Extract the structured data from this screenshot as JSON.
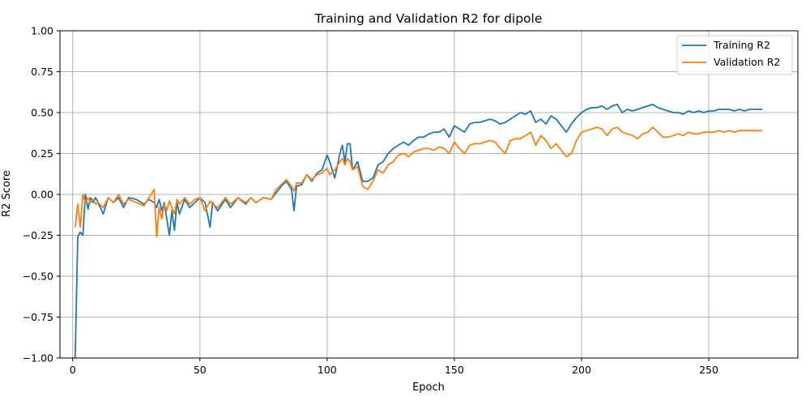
{
  "chart_data": {
    "type": "line",
    "title": "Training and Validation R2 for dipole",
    "xlabel": "Epoch",
    "ylabel": "R2 Score",
    "xlim": [
      -5,
      285
    ],
    "ylim": [
      -1.0,
      1.0
    ],
    "xticks": [
      0,
      50,
      100,
      150,
      200,
      250
    ],
    "yticks": [
      -1.0,
      -0.75,
      -0.5,
      -0.25,
      0.0,
      0.25,
      0.5,
      0.75,
      1.0
    ],
    "xtick_labels": [
      "0",
      "50",
      "100",
      "150",
      "200",
      "250"
    ],
    "ytick_labels": [
      "−1.00",
      "−0.75",
      "−0.50",
      "−0.25",
      "0.00",
      "0.25",
      "0.50",
      "0.75",
      "1.00"
    ],
    "grid": true,
    "legend_position": "top-right",
    "series": [
      {
        "name": "Training R2",
        "color": "#1f77b4",
        "points": [
          [
            1,
            -1.0
          ],
          [
            2,
            -0.26
          ],
          [
            3,
            -0.23
          ],
          [
            4,
            -0.25
          ],
          [
            5,
            0.0
          ],
          [
            6,
            -0.09
          ],
          [
            7,
            -0.02
          ],
          [
            8,
            -0.05
          ],
          [
            9,
            -0.02
          ],
          [
            10,
            -0.05
          ],
          [
            12,
            -0.12
          ],
          [
            14,
            -0.02
          ],
          [
            16,
            -0.05
          ],
          [
            18,
            -0.02
          ],
          [
            20,
            -0.08
          ],
          [
            22,
            -0.02
          ],
          [
            25,
            -0.03
          ],
          [
            28,
            -0.06
          ],
          [
            30,
            -0.03
          ],
          [
            32,
            -0.05
          ],
          [
            33,
            -0.08
          ],
          [
            34,
            -0.03
          ],
          [
            35,
            -0.1
          ],
          [
            36,
            -0.05
          ],
          [
            37,
            -0.15
          ],
          [
            38,
            -0.25
          ],
          [
            39,
            -0.1
          ],
          [
            40,
            -0.22
          ],
          [
            41,
            -0.05
          ],
          [
            42,
            -0.12
          ],
          [
            44,
            -0.03
          ],
          [
            46,
            -0.08
          ],
          [
            48,
            -0.05
          ],
          [
            50,
            -0.02
          ],
          [
            52,
            -0.05
          ],
          [
            54,
            -0.2
          ],
          [
            55,
            -0.05
          ],
          [
            57,
            -0.1
          ],
          [
            60,
            -0.03
          ],
          [
            62,
            -0.08
          ],
          [
            65,
            -0.02
          ],
          [
            68,
            -0.06
          ],
          [
            70,
            -0.02
          ],
          [
            72,
            -0.05
          ],
          [
            75,
            -0.02
          ],
          [
            78,
            -0.03
          ],
          [
            80,
            0.01
          ],
          [
            82,
            0.05
          ],
          [
            84,
            0.08
          ],
          [
            86,
            0.03
          ],
          [
            87,
            -0.1
          ],
          [
            88,
            0.05
          ],
          [
            90,
            0.06
          ],
          [
            92,
            0.12
          ],
          [
            94,
            0.08
          ],
          [
            96,
            0.13
          ],
          [
            98,
            0.15
          ],
          [
            100,
            0.24
          ],
          [
            101,
            0.2
          ],
          [
            103,
            0.1
          ],
          [
            105,
            0.25
          ],
          [
            106,
            0.3
          ],
          [
            107,
            0.2
          ],
          [
            108,
            0.31
          ],
          [
            109,
            0.31
          ],
          [
            110,
            0.15
          ],
          [
            112,
            0.2
          ],
          [
            114,
            0.08
          ],
          [
            116,
            0.08
          ],
          [
            118,
            0.1
          ],
          [
            120,
            0.18
          ],
          [
            122,
            0.2
          ],
          [
            124,
            0.25
          ],
          [
            126,
            0.28
          ],
          [
            128,
            0.3
          ],
          [
            130,
            0.32
          ],
          [
            132,
            0.3
          ],
          [
            134,
            0.33
          ],
          [
            136,
            0.35
          ],
          [
            138,
            0.35
          ],
          [
            140,
            0.37
          ],
          [
            142,
            0.38
          ],
          [
            144,
            0.38
          ],
          [
            146,
            0.4
          ],
          [
            148,
            0.35
          ],
          [
            150,
            0.42
          ],
          [
            152,
            0.4
          ],
          [
            154,
            0.38
          ],
          [
            156,
            0.43
          ],
          [
            158,
            0.44
          ],
          [
            160,
            0.44
          ],
          [
            162,
            0.45
          ],
          [
            164,
            0.46
          ],
          [
            166,
            0.45
          ],
          [
            168,
            0.43
          ],
          [
            170,
            0.44
          ],
          [
            172,
            0.46
          ],
          [
            174,
            0.48
          ],
          [
            176,
            0.5
          ],
          [
            178,
            0.49
          ],
          [
            180,
            0.51
          ],
          [
            182,
            0.44
          ],
          [
            184,
            0.46
          ],
          [
            186,
            0.43
          ],
          [
            188,
            0.48
          ],
          [
            190,
            0.46
          ],
          [
            192,
            0.42
          ],
          [
            194,
            0.38
          ],
          [
            196,
            0.43
          ],
          [
            198,
            0.47
          ],
          [
            200,
            0.5
          ],
          [
            202,
            0.52
          ],
          [
            204,
            0.53
          ],
          [
            206,
            0.53
          ],
          [
            208,
            0.54
          ],
          [
            210,
            0.52
          ],
          [
            212,
            0.54
          ],
          [
            214,
            0.55
          ],
          [
            216,
            0.5
          ],
          [
            218,
            0.52
          ],
          [
            220,
            0.51
          ],
          [
            222,
            0.52
          ],
          [
            224,
            0.53
          ],
          [
            226,
            0.54
          ],
          [
            228,
            0.55
          ],
          [
            230,
            0.53
          ],
          [
            232,
            0.52
          ],
          [
            234,
            0.51
          ],
          [
            236,
            0.5
          ],
          [
            238,
            0.5
          ],
          [
            240,
            0.49
          ],
          [
            242,
            0.51
          ],
          [
            244,
            0.5
          ],
          [
            246,
            0.51
          ],
          [
            248,
            0.5
          ],
          [
            250,
            0.51
          ],
          [
            252,
            0.51
          ],
          [
            254,
            0.52
          ],
          [
            256,
            0.52
          ],
          [
            258,
            0.52
          ],
          [
            260,
            0.51
          ],
          [
            262,
            0.52
          ],
          [
            264,
            0.51
          ],
          [
            266,
            0.52
          ],
          [
            268,
            0.52
          ],
          [
            270,
            0.52
          ],
          [
            271,
            0.52
          ]
        ]
      },
      {
        "name": "Validation R2",
        "color": "#ff7f0e",
        "points": [
          [
            1,
            -0.2
          ],
          [
            2,
            -0.06
          ],
          [
            3,
            -0.2
          ],
          [
            4,
            0.0
          ],
          [
            5,
            -0.05
          ],
          [
            6,
            -0.02
          ],
          [
            7,
            -0.05
          ],
          [
            8,
            -0.03
          ],
          [
            9,
            -0.06
          ],
          [
            10,
            -0.05
          ],
          [
            12,
            -0.08
          ],
          [
            14,
            -0.02
          ],
          [
            16,
            -0.05
          ],
          [
            18,
            0.0
          ],
          [
            20,
            -0.06
          ],
          [
            22,
            -0.03
          ],
          [
            25,
            -0.05
          ],
          [
            28,
            -0.07
          ],
          [
            30,
            -0.02
          ],
          [
            32,
            0.03
          ],
          [
            33,
            -0.26
          ],
          [
            34,
            -0.08
          ],
          [
            35,
            -0.15
          ],
          [
            36,
            -0.06
          ],
          [
            37,
            -0.1
          ],
          [
            38,
            -0.04
          ],
          [
            39,
            -0.08
          ],
          [
            40,
            -0.12
          ],
          [
            41,
            -0.03
          ],
          [
            42,
            -0.06
          ],
          [
            44,
            -0.02
          ],
          [
            46,
            -0.06
          ],
          [
            48,
            -0.03
          ],
          [
            50,
            -0.02
          ],
          [
            52,
            -0.1
          ],
          [
            54,
            -0.04
          ],
          [
            55,
            -0.06
          ],
          [
            57,
            -0.08
          ],
          [
            60,
            -0.02
          ],
          [
            62,
            -0.06
          ],
          [
            65,
            -0.02
          ],
          [
            68,
            -0.05
          ],
          [
            70,
            -0.02
          ],
          [
            72,
            -0.05
          ],
          [
            75,
            -0.02
          ],
          [
            78,
            -0.03
          ],
          [
            80,
            0.03
          ],
          [
            82,
            0.06
          ],
          [
            84,
            0.09
          ],
          [
            86,
            0.05
          ],
          [
            87,
            0.02
          ],
          [
            88,
            0.07
          ],
          [
            90,
            0.07
          ],
          [
            92,
            0.12
          ],
          [
            94,
            0.09
          ],
          [
            96,
            0.12
          ],
          [
            98,
            0.13
          ],
          [
            100,
            0.16
          ],
          [
            101,
            0.12
          ],
          [
            103,
            0.15
          ],
          [
            105,
            0.2
          ],
          [
            106,
            0.22
          ],
          [
            107,
            0.18
          ],
          [
            108,
            0.22
          ],
          [
            109,
            0.2
          ],
          [
            110,
            0.15
          ],
          [
            112,
            0.17
          ],
          [
            114,
            0.05
          ],
          [
            116,
            0.03
          ],
          [
            118,
            0.08
          ],
          [
            120,
            0.15
          ],
          [
            122,
            0.13
          ],
          [
            124,
            0.18
          ],
          [
            126,
            0.2
          ],
          [
            128,
            0.24
          ],
          [
            130,
            0.25
          ],
          [
            132,
            0.23
          ],
          [
            134,
            0.26
          ],
          [
            136,
            0.27
          ],
          [
            138,
            0.28
          ],
          [
            140,
            0.28
          ],
          [
            142,
            0.27
          ],
          [
            144,
            0.29
          ],
          [
            146,
            0.28
          ],
          [
            148,
            0.25
          ],
          [
            150,
            0.32
          ],
          [
            152,
            0.28
          ],
          [
            154,
            0.25
          ],
          [
            156,
            0.3
          ],
          [
            158,
            0.31
          ],
          [
            160,
            0.31
          ],
          [
            162,
            0.32
          ],
          [
            164,
            0.33
          ],
          [
            166,
            0.32
          ],
          [
            168,
            0.28
          ],
          [
            170,
            0.25
          ],
          [
            172,
            0.33
          ],
          [
            174,
            0.34
          ],
          [
            176,
            0.34
          ],
          [
            178,
            0.36
          ],
          [
            180,
            0.38
          ],
          [
            182,
            0.3
          ],
          [
            184,
            0.36
          ],
          [
            186,
            0.33
          ],
          [
            188,
            0.28
          ],
          [
            190,
            0.31
          ],
          [
            192,
            0.27
          ],
          [
            194,
            0.23
          ],
          [
            196,
            0.25
          ],
          [
            198,
            0.33
          ],
          [
            200,
            0.38
          ],
          [
            202,
            0.39
          ],
          [
            204,
            0.4
          ],
          [
            206,
            0.41
          ],
          [
            208,
            0.4
          ],
          [
            210,
            0.36
          ],
          [
            212,
            0.4
          ],
          [
            214,
            0.41
          ],
          [
            216,
            0.38
          ],
          [
            218,
            0.37
          ],
          [
            220,
            0.36
          ],
          [
            222,
            0.34
          ],
          [
            224,
            0.37
          ],
          [
            226,
            0.38
          ],
          [
            228,
            0.41
          ],
          [
            230,
            0.38
          ],
          [
            232,
            0.35
          ],
          [
            234,
            0.35
          ],
          [
            236,
            0.36
          ],
          [
            238,
            0.37
          ],
          [
            240,
            0.36
          ],
          [
            242,
            0.38
          ],
          [
            244,
            0.37
          ],
          [
            246,
            0.37
          ],
          [
            248,
            0.38
          ],
          [
            250,
            0.38
          ],
          [
            252,
            0.38
          ],
          [
            254,
            0.39
          ],
          [
            256,
            0.38
          ],
          [
            258,
            0.39
          ],
          [
            260,
            0.38
          ],
          [
            262,
            0.39
          ],
          [
            264,
            0.39
          ],
          [
            266,
            0.39
          ],
          [
            268,
            0.39
          ],
          [
            270,
            0.39
          ],
          [
            271,
            0.39
          ]
        ]
      }
    ]
  }
}
